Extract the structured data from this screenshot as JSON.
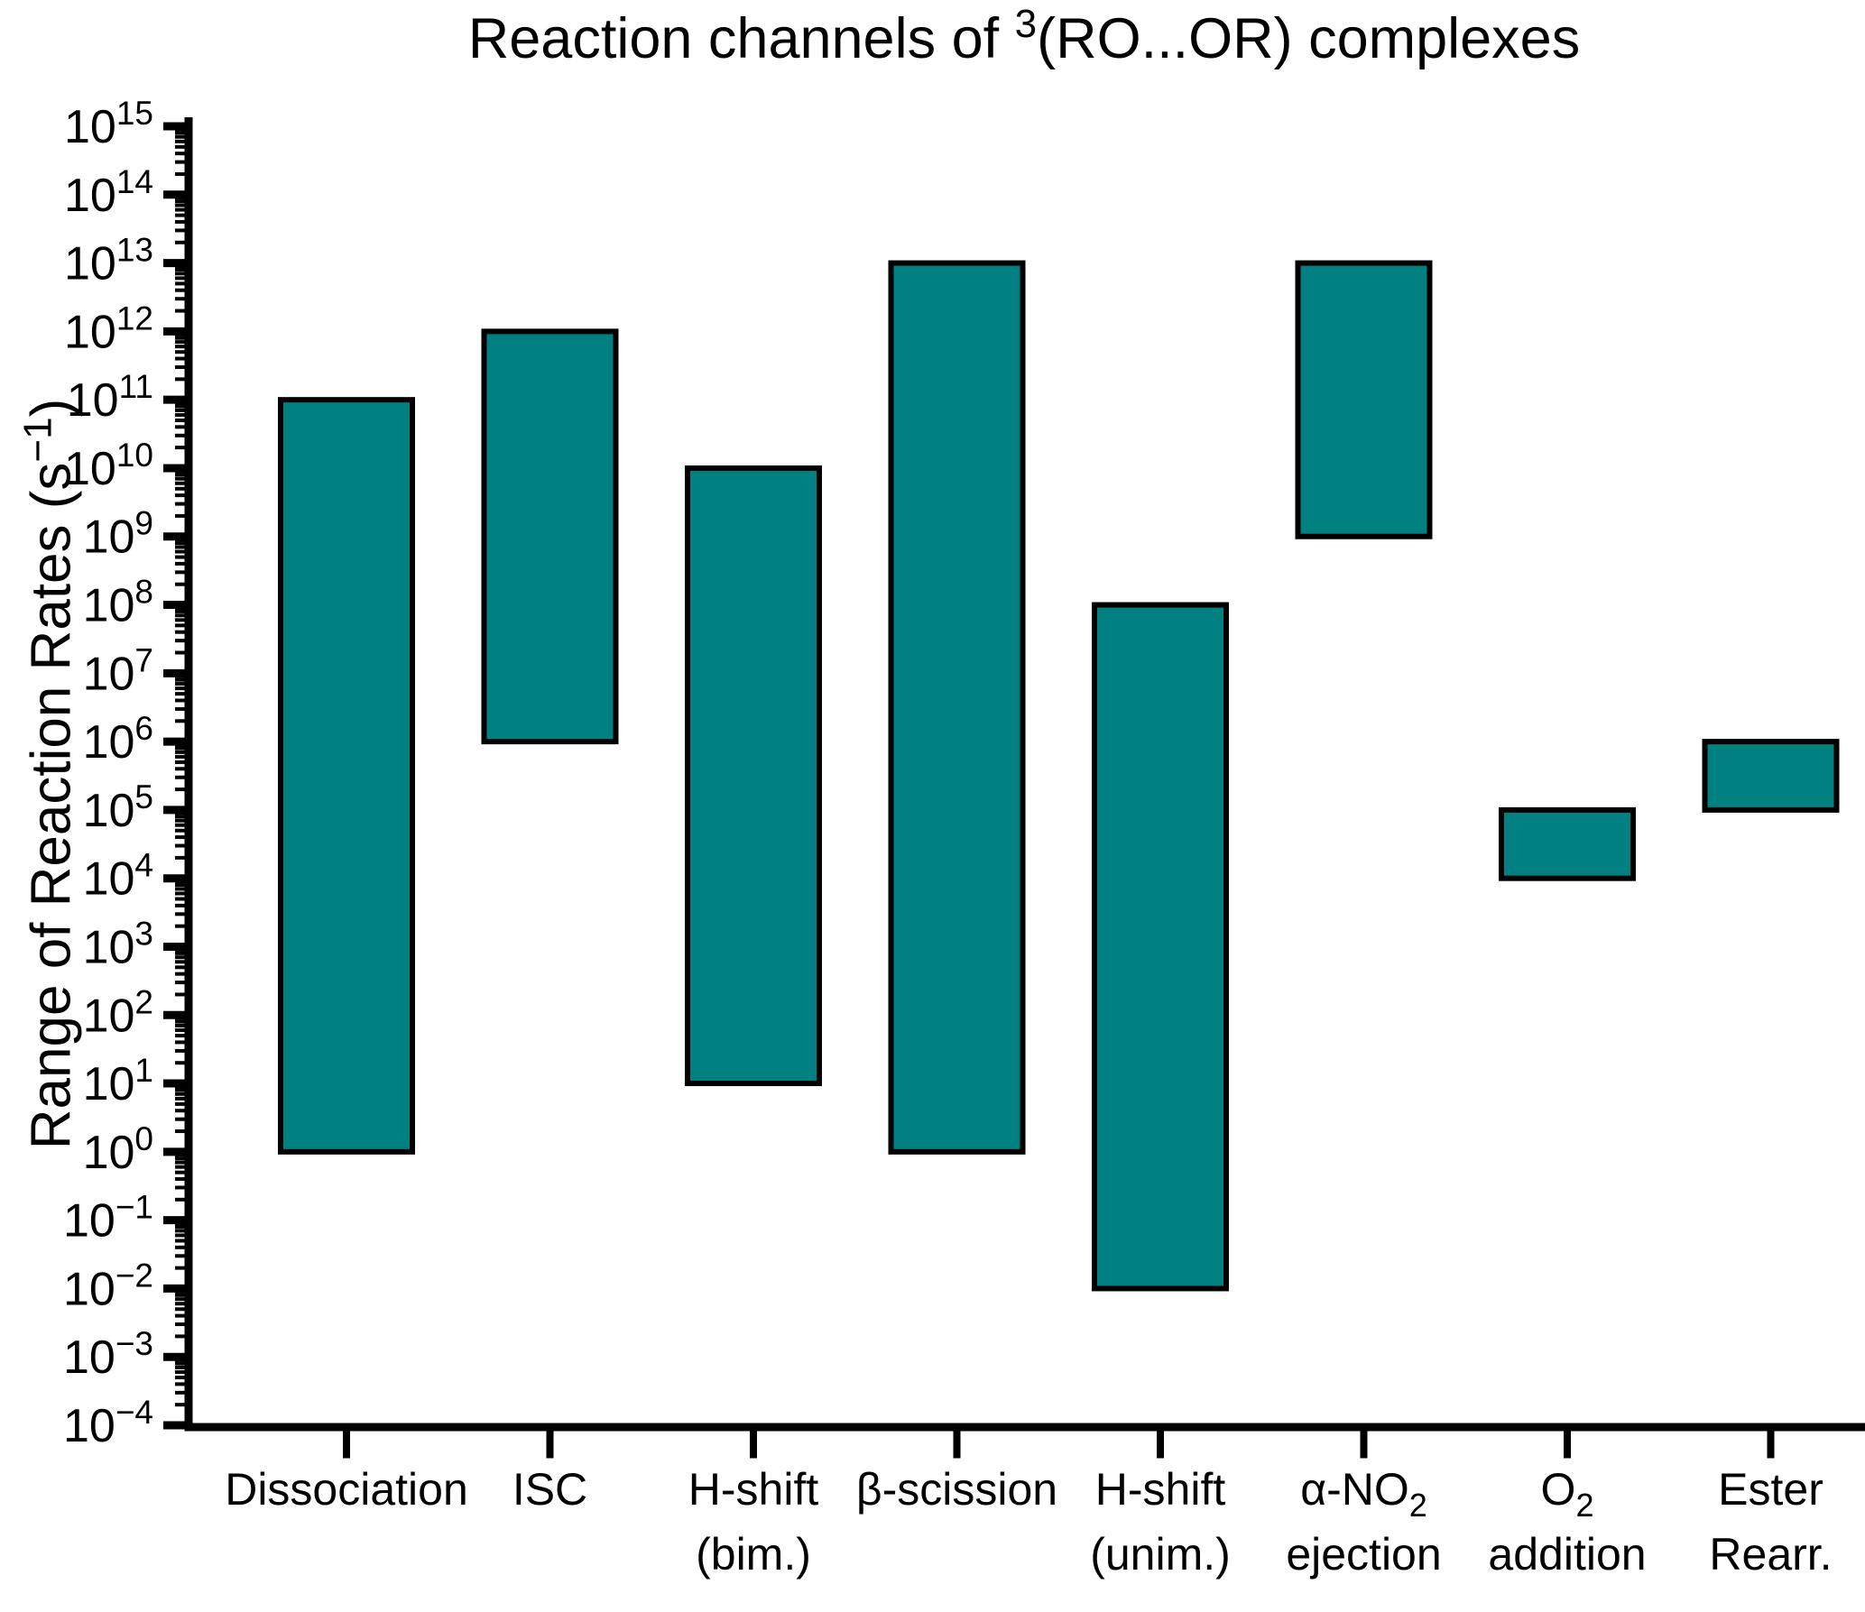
{
  "page": {
    "background": "#ffffff"
  },
  "chart_data": {
    "type": "bar",
    "subtype": "floating-range-bars-log-scale",
    "title": {
      "text": "Reaction channels of ³(RO...OR) complexes",
      "prefix": "Reaction channels of ",
      "superscript": "3",
      "suffix": "(RO...OR) complexes"
    },
    "ylabel": {
      "text": "Range of Reaction Rates (s⁻¹)",
      "prefix": "Range of Reaction Rates (s",
      "superscript": "−1",
      "suffix": ")"
    },
    "xlabel": "",
    "y_scale": "log10",
    "y_unit": "s⁻¹",
    "ylim": {
      "min_exponent": -4,
      "max_exponent": 15
    },
    "y_tick_base": "10",
    "y_major_tick_exponents": [
      "15",
      "14",
      "13",
      "12",
      "11",
      "10",
      "9",
      "8",
      "7",
      "6",
      "5",
      "4",
      "3",
      "2",
      "1",
      "0",
      "−1",
      "−2",
      "−3",
      "−4"
    ],
    "grid": false,
    "legend": false,
    "bar_color": "#008081",
    "bar_border_color": "#000000",
    "categories": [
      {
        "id": "dissociation",
        "label_lines": [
          [
            {
              "t": "Dissociation"
            }
          ]
        ],
        "min_exponent": 0,
        "max_exponent": 11
      },
      {
        "id": "isc",
        "label_lines": [
          [
            {
              "t": "ISC"
            }
          ]
        ],
        "min_exponent": 6,
        "max_exponent": 12
      },
      {
        "id": "h-shift-bim",
        "label_lines": [
          [
            {
              "t": "H-shift"
            }
          ],
          [
            {
              "t": "(bim.)"
            }
          ]
        ],
        "min_exponent": 1,
        "max_exponent": 10
      },
      {
        "id": "beta-scission",
        "label_lines": [
          [
            {
              "t": "β-scission"
            }
          ]
        ],
        "min_exponent": 0,
        "max_exponent": 13
      },
      {
        "id": "h-shift-unim",
        "label_lines": [
          [
            {
              "t": "H-shift"
            }
          ],
          [
            {
              "t": "(unim.)"
            }
          ]
        ],
        "min_exponent": -2,
        "max_exponent": 8
      },
      {
        "id": "alpha-no2-ejection",
        "label_lines": [
          [
            {
              "t": "α-NO"
            },
            {
              "t": "2",
              "sub": true
            }
          ],
          [
            {
              "t": "ejection"
            }
          ]
        ],
        "min_exponent": 9,
        "max_exponent": 13
      },
      {
        "id": "o2-addition",
        "label_lines": [
          [
            {
              "t": "O"
            },
            {
              "t": "2",
              "sub": true
            }
          ],
          [
            {
              "t": "addition"
            }
          ]
        ],
        "min_exponent": 4,
        "max_exponent": 5
      },
      {
        "id": "ester-rearr",
        "label_lines": [
          [
            {
              "t": "Ester"
            }
          ],
          [
            {
              "t": "Rearr."
            }
          ]
        ],
        "min_exponent": 5,
        "max_exponent": 6
      }
    ]
  }
}
